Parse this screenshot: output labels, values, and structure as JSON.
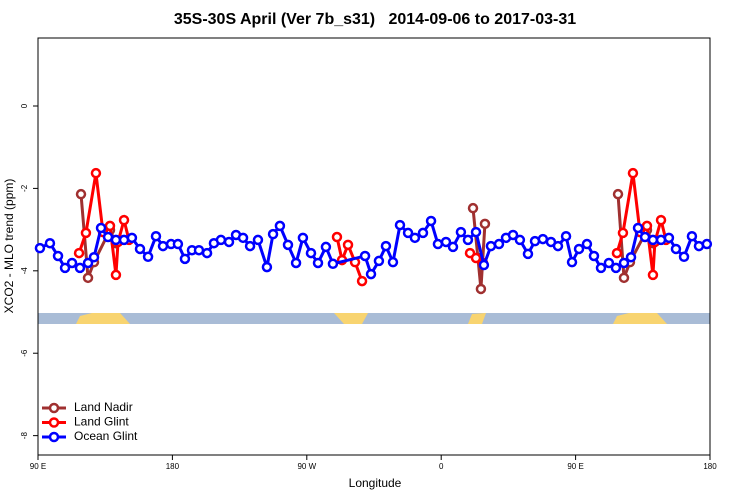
{
  "chart_data": {
    "type": "line",
    "title": "35S-30S April (Ver 7b_s31)   2014-09-06 to 2017-03-31",
    "x_label": "Longitude",
    "y_label": "XCO2 - MLO trend (ppm)",
    "xlim": [
      90,
      540
    ],
    "xticks": [
      {
        "value": 90,
        "label": "90 E"
      },
      {
        "value": 180,
        "label": "180"
      },
      {
        "value": 270,
        "label": "90 W"
      },
      {
        "value": 360,
        "label": "0"
      },
      {
        "value": 450,
        "label": "90 E"
      },
      {
        "value": 540,
        "label": "180"
      }
    ],
    "ylim": [
      -8.47,
      1.65
    ],
    "yticks": [
      0,
      -2,
      -4,
      -6,
      -8
    ],
    "legend": "bottom-left",
    "series": [
      {
        "name": "Land Nadir",
        "color": "#a03030",
        "x": [
          118.8,
          123.5,
          127.5,
          138.2,
          142.2,
          null,
          381.3,
          384.6,
          386.6,
          389.3,
          null,
          478.4,
          482.4,
          486.4,
          497.8,
          501.8
        ],
        "values": [
          -2.14,
          -4.17,
          -3.79,
          -3.01,
          -3.33,
          null,
          -2.48,
          -3.69,
          -4.44,
          -2.86,
          null,
          -2.14,
          -4.17,
          -3.79,
          -3.01,
          -3.33
        ]
      },
      {
        "name": "Land Glint",
        "color": "#ff0000",
        "x": [
          117.5,
          122.1,
          128.8,
          133.5,
          138.2,
          142.2,
          143.6,
          147.6,
          150.9,
          null,
          290.2,
          293.6,
          297.6,
          302.3,
          307.0,
          null,
          379.3,
          383.3,
          388.0,
          null,
          477.7,
          481.7,
          488.4,
          493.1,
          497.8,
          501.8,
          503.1,
          507.2,
          510.5
        ],
        "values": [
          -3.57,
          -3.08,
          -1.63,
          -3.06,
          -2.91,
          -4.1,
          -3.3,
          -2.77,
          -3.25,
          null,
          -3.18,
          -3.74,
          -3.37,
          -3.79,
          -4.25,
          null,
          -3.57,
          -3.69,
          -3.81,
          null,
          -3.57,
          -3.08,
          -1.63,
          -3.06,
          -2.91,
          -4.1,
          -3.3,
          -2.77,
          -3.25
        ]
      },
      {
        "name": "Ocean Glint",
        "color": "#0000ff",
        "x": [
          91.3,
          98.0,
          103.4,
          108.1,
          112.8,
          118.1,
          123.5,
          127.5,
          132.2,
          136.9,
          142.2,
          147.6,
          152.9,
          158.3,
          163.7,
          169.0,
          173.7,
          179.1,
          183.7,
          188.4,
          193.1,
          197.8,
          203.2,
          207.8,
          212.5,
          217.9,
          222.6,
          227.3,
          232.0,
          237.3,
          243.3,
          247.4,
          252.0,
          257.4,
          262.8,
          267.4,
          272.8,
          277.5,
          282.8,
          287.5,
          309.0,
          313.0,
          318.3,
          323.0,
          327.7,
          332.4,
          337.8,
          342.4,
          347.8,
          353.2,
          357.8,
          363.2,
          367.9,
          373.2,
          377.9,
          383.3,
          388.6,
          393.3,
          398.7,
          403.4,
          408.1,
          412.7,
          418.1,
          422.8,
          428.1,
          433.5,
          438.2,
          443.6,
          447.6,
          452.3,
          457.6,
          462.3,
          467.0,
          472.3,
          477.0,
          482.4,
          487.1,
          491.8,
          496.5,
          501.8,
          507.2,
          512.5,
          517.2,
          522.6,
          527.9,
          532.6,
          537.9
        ],
        "values": [
          -3.45,
          -3.33,
          -3.64,
          -3.93,
          -3.81,
          -3.93,
          -3.81,
          -3.67,
          -2.96,
          -3.18,
          -3.25,
          -3.25,
          -3.2,
          -3.47,
          -3.66,
          -3.16,
          -3.4,
          -3.35,
          -3.35,
          -3.71,
          -3.5,
          -3.5,
          -3.57,
          -3.33,
          -3.25,
          -3.3,
          -3.13,
          -3.2,
          -3.4,
          -3.25,
          -3.91,
          -3.11,
          -2.91,
          -3.37,
          -3.81,
          -3.2,
          -3.57,
          -3.81,
          -3.42,
          -3.83,
          -3.64,
          -4.08,
          -3.76,
          -3.4,
          -3.79,
          -2.89,
          -3.08,
          -3.2,
          -3.08,
          -2.79,
          -3.35,
          -3.3,
          -3.42,
          -3.06,
          -3.25,
          -3.06,
          -3.86,
          -3.4,
          -3.35,
          -3.2,
          -3.13,
          -3.25,
          -3.59,
          -3.28,
          -3.23,
          -3.3,
          -3.4,
          -3.16,
          -3.79,
          -3.47,
          -3.35,
          -3.64,
          -3.93,
          -3.81,
          -3.93,
          -3.81,
          -3.67,
          -2.96,
          -3.18,
          -3.25,
          -3.25,
          -3.2,
          -3.47,
          -3.66,
          -3.16,
          -3.4,
          -3.35
        ]
      }
    ]
  }
}
